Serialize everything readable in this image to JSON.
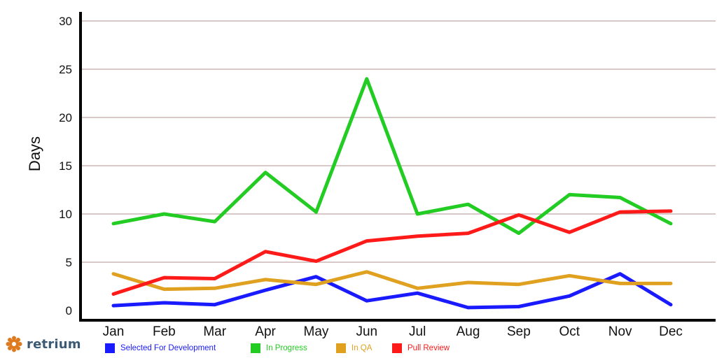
{
  "brand": {
    "name": "retrium",
    "icon": "gear-icon",
    "color": "#e07a1f"
  },
  "chart_data": {
    "type": "line",
    "title": "",
    "xlabel": "",
    "ylabel": "Days",
    "ylim": [
      0,
      30
    ],
    "yticks": [
      0,
      5,
      10,
      15,
      20,
      25,
      30
    ],
    "grid": true,
    "legend_position": "bottom",
    "categories": [
      "Jan",
      "Feb",
      "Mar",
      "Apr",
      "May",
      "Jun",
      "Jul",
      "Aug",
      "Sep",
      "Oct",
      "Nov",
      "Dec"
    ],
    "series": [
      {
        "name": "Selected For Development",
        "color": "#1a1aff",
        "values": [
          0.5,
          0.8,
          0.6,
          2.1,
          3.5,
          1.0,
          1.8,
          0.3,
          0.4,
          1.5,
          3.8,
          0.6
        ]
      },
      {
        "name": "In Progress",
        "color": "#22cc22",
        "values": [
          9.0,
          10.0,
          9.2,
          14.3,
          10.2,
          24.0,
          10.0,
          11.0,
          8.0,
          12.0,
          11.7,
          9.0
        ]
      },
      {
        "name": "In QA",
        "color": "#e0a020",
        "values": [
          3.8,
          2.2,
          2.3,
          3.2,
          2.7,
          4.0,
          2.3,
          2.9,
          2.7,
          3.6,
          2.8,
          2.8
        ]
      },
      {
        "name": "Pull Review",
        "color": "#ff1a1a",
        "values": [
          1.7,
          3.4,
          3.3,
          6.1,
          5.1,
          7.2,
          7.7,
          8.0,
          9.9,
          8.1,
          10.2,
          10.3
        ]
      }
    ]
  }
}
